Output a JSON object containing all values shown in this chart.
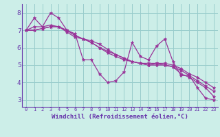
{
  "xlabel": "Windchill (Refroidissement éolien,°C)",
  "bg_color": "#cceee8",
  "grid_color": "#99cccc",
  "line_color": "#993399",
  "axis_color": "#6633aa",
  "xlim": [
    -0.5,
    23.5
  ],
  "ylim": [
    2.6,
    8.5
  ],
  "yticks": [
    3,
    4,
    5,
    6,
    7,
    8
  ],
  "xticks": [
    0,
    1,
    2,
    3,
    4,
    5,
    6,
    7,
    8,
    9,
    10,
    11,
    12,
    13,
    14,
    15,
    16,
    17,
    18,
    19,
    20,
    21,
    22,
    23
  ],
  "series": [
    [
      7.0,
      7.7,
      7.2,
      8.0,
      7.7,
      7.0,
      6.8,
      5.3,
      5.3,
      4.5,
      4.0,
      4.1,
      4.6,
      6.3,
      5.5,
      5.3,
      6.1,
      6.5,
      5.2,
      4.4,
      4.4,
      3.7,
      3.1,
      3.0
    ],
    [
      7.0,
      7.0,
      7.1,
      7.2,
      7.2,
      7.0,
      6.7,
      6.5,
      6.3,
      6.0,
      5.7,
      5.5,
      5.3,
      5.2,
      5.1,
      5.1,
      5.1,
      5.1,
      5.0,
      4.8,
      4.5,
      4.3,
      4.0,
      3.7
    ],
    [
      7.0,
      7.0,
      7.1,
      7.2,
      7.2,
      7.0,
      6.7,
      6.5,
      6.3,
      6.0,
      5.8,
      5.6,
      5.4,
      5.2,
      5.1,
      5.0,
      5.0,
      5.0,
      4.9,
      4.7,
      4.4,
      4.1,
      3.8,
      3.5
    ],
    [
      7.0,
      7.2,
      7.2,
      7.3,
      7.2,
      6.9,
      6.6,
      6.5,
      6.4,
      6.2,
      5.9,
      5.6,
      5.4,
      5.2,
      5.1,
      5.0,
      5.1,
      5.0,
      4.9,
      4.5,
      4.3,
      4.0,
      3.7,
      3.2
    ]
  ],
  "figsize": [
    3.2,
    2.0
  ],
  "dpi": 100
}
